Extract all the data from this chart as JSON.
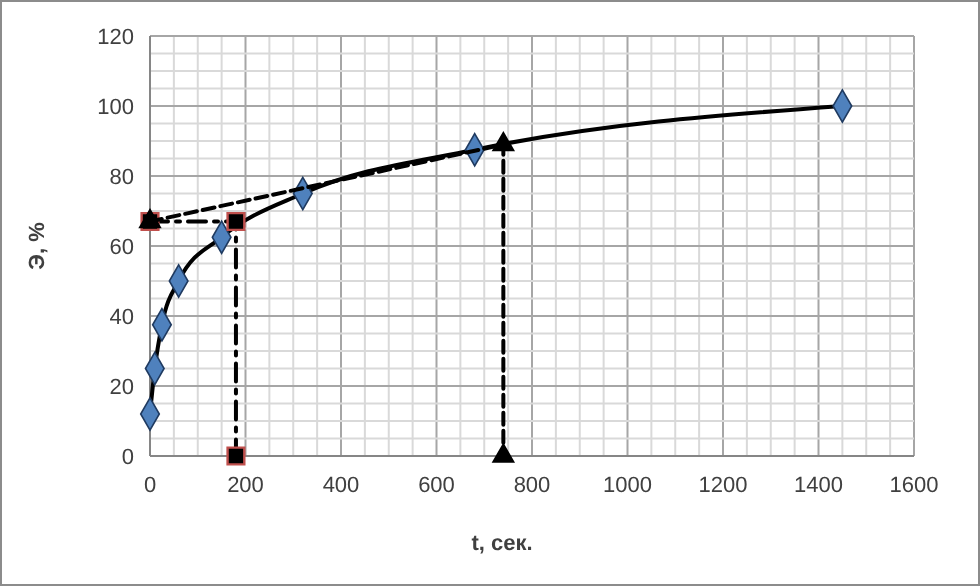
{
  "chart_data": {
    "type": "line",
    "xlabel": "t, сек.",
    "ylabel": "Э, %",
    "xlim": [
      0,
      1600
    ],
    "ylim": [
      0,
      120
    ],
    "xticks": [
      0,
      {
        "value": 50,
        "label": null
      },
      {
        "value": 100,
        "label": null
      },
      {
        "value": 150,
        "label": null
      },
      200,
      {
        "value": 250,
        "label": null
      },
      {
        "value": 300,
        "label": null
      },
      {
        "value": 350,
        "label": null
      },
      400,
      {
        "value": 450,
        "label": null
      },
      {
        "value": 500,
        "label": null
      },
      {
        "value": 550,
        "label": null
      },
      600,
      {
        "value": 650,
        "label": null
      },
      {
        "value": 700,
        "label": null
      },
      {
        "value": 750,
        "label": null
      },
      800,
      {
        "value": 850,
        "label": null
      },
      {
        "value": 900,
        "label": null
      },
      {
        "value": 950,
        "label": null
      },
      1000,
      {
        "value": 1050,
        "label": null
      },
      {
        "value": 1100,
        "label": null
      },
      {
        "value": 1150,
        "label": null
      },
      1200,
      {
        "value": 1250,
        "label": null
      },
      {
        "value": 1300,
        "label": null
      },
      {
        "value": 1350,
        "label": null
      },
      1400,
      {
        "value": 1450,
        "label": null
      },
      {
        "value": 1500,
        "label": null
      },
      {
        "value": 1550,
        "label": null
      },
      1600
    ],
    "yticks": [
      0,
      {
        "value": 5,
        "label": null
      },
      {
        "value": 10,
        "label": null
      },
      {
        "value": 15,
        "label": null
      },
      20,
      {
        "value": 25,
        "label": null
      },
      {
        "value": 30,
        "label": null
      },
      {
        "value": 35,
        "label": null
      },
      40,
      {
        "value": 45,
        "label": null
      },
      {
        "value": 50,
        "label": null
      },
      {
        "value": 55,
        "label": null
      },
      60,
      {
        "value": 65,
        "label": null
      },
      {
        "value": 70,
        "label": null
      },
      {
        "value": 75,
        "label": null
      },
      80,
      {
        "value": 85,
        "label": null
      },
      {
        "value": 90,
        "label": null
      },
      {
        "value": 95,
        "label": null
      },
      100,
      {
        "value": 105,
        "label": null
      },
      {
        "value": 110,
        "label": null
      },
      {
        "value": 115,
        "label": null
      },
      120
    ],
    "grid": true,
    "series": [
      {
        "color": "#4f81bd",
        "marker": "diamond",
        "line_style": "solid",
        "x": [
          0,
          10,
          25,
          60,
          150,
          320,
          680,
          1450
        ],
        "values": [
          12,
          25,
          37.5,
          50,
          62.5,
          75,
          87.5,
          100
        ]
      },
      {
        "color": "#000000",
        "marker": "square",
        "line_style": "dotted",
        "x": [
          0,
          180,
          180
        ],
        "values": [
          67,
          67,
          0
        ]
      },
      {
        "color": "#000000",
        "marker": "triangle",
        "line_style": "dashed",
        "x": [
          0,
          740,
          740
        ],
        "values": [
          67,
          89,
          0
        ]
      }
    ]
  }
}
